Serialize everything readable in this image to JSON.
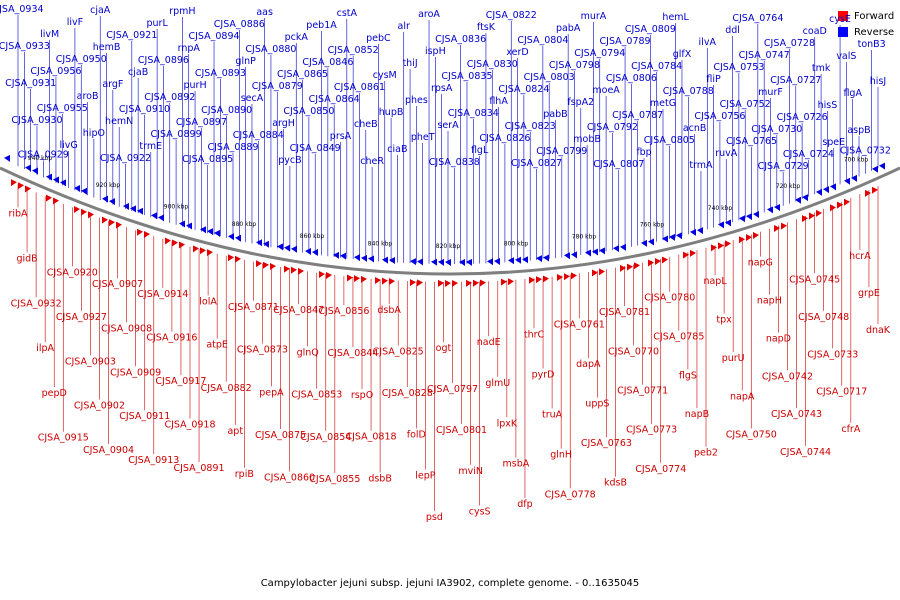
{
  "caption": "Campylobacter jejuni subsp. jejuni IA3902, complete genome. - 0..1635045",
  "legend": {
    "forward": {
      "label": "Forward",
      "color": "#ff0000"
    },
    "reverse": {
      "label": "Reverse",
      "color": "#0000ff"
    }
  },
  "colors": {
    "forward": "#e00000",
    "reverse": "#0000e0",
    "text_forward": "#cc0000",
    "text_reverse": "#0000cc",
    "backbone": "#7f7f7f"
  },
  "kbp_ticks": [
    "940 kbp",
    "920 kbp",
    "900 kbp",
    "880 kbp",
    "860 kbp",
    "840 kbp",
    "820 kbp",
    "800 kbp",
    "780 kbp",
    "760 kbp",
    "740 kbp",
    "720 kbp",
    "700 kbp"
  ],
  "reverse_labels": [
    "CJSA_0934",
    "CJSA_0933",
    "CJSA_0931",
    "CJSA_0930",
    "CJSA_0929",
    "livM",
    "CJSA_0956",
    "CJSA_0955",
    "livG",
    "livF",
    "CJSA_0950",
    "aroB",
    "hipO",
    "cjaA",
    "hemB",
    "argF",
    "hemN",
    "CJSA_0922",
    "CJSA_0921",
    "cjaB",
    "CJSA_0910",
    "trmE",
    "purL",
    "CJSA_0896",
    "CJSA_0892",
    "CJSA_0899",
    "rpmH",
    "rnpA",
    "purH",
    "CJSA_0897",
    "CJSA_0895",
    "CJSA_0894",
    "CJSA_0893",
    "CJSA_0890",
    "CJSA_0889",
    "CJSA_0886",
    "glnP",
    "secA",
    "CJSA_0884",
    "aas",
    "CJSA_0880",
    "CJSA_0879",
    "argH",
    "pycB",
    "pckA",
    "CJSA_0865",
    "CJSA_0850",
    "CJSA_0849",
    "peb1A",
    "CJSA_0846",
    "CJSA_0864",
    "prsA",
    "cstA",
    "CJSA_0852",
    "CJSA_0861",
    "cheB",
    "cheR",
    "pebC",
    "cysM",
    "hupB",
    "ciaB",
    "alr",
    "thiJ",
    "phes",
    "pheT",
    "aroA",
    "ispH",
    "rpsA",
    "serA",
    "CJSA_0838",
    "CJSA_0836",
    "CJSA_0835",
    "CJSA_0834",
    "flgL",
    "ftsK",
    "CJSA_0830",
    "flhA",
    "CJSA_0826",
    "CJSA_0822",
    "xerD",
    "CJSA_0824",
    "CJSA_0823",
    "CJSA_0827",
    "CJSA_0804",
    "CJSA_0803",
    "pabB",
    "CJSA_0799",
    "pabA",
    "CJSA_0798",
    "fspA2",
    "mobB",
    "murA",
    "CJSA_0794",
    "moeA",
    "CJSA_0792",
    "CJSA_0807",
    "CJSA_0789",
    "CJSA_0806",
    "CJSA_0787",
    "fbp",
    "CJSA_0809",
    "CJSA_0784",
    "metG",
    "CJSA_0805",
    "hemL",
    "glfX",
    "CJSA_0788",
    "acnB",
    "trmA",
    "ilvA",
    "fliP",
    "CJSA_0756",
    "ruvA",
    "ddl",
    "CJSA_0753",
    "CJSA_0752",
    "CJSA_0765",
    "CJSA_0764",
    "CJSA_0747",
    "murF",
    "CJSA_0730",
    "CJSA_0729",
    "CJSA_0728",
    "CJSA_0727",
    "CJSA_0726",
    "CJSA_0724",
    "coaD",
    "tmk",
    "hisS",
    "speE",
    "cysE",
    "valS",
    "flgA",
    "aspB",
    "CJSA_0732",
    "tonB3",
    "hisJ"
  ],
  "forward_labels": [
    "ribA",
    "gidB",
    "CJSA_0932",
    "ilpA",
    "pepD",
    "CJSA_0915",
    "CJSA_0920",
    "CJSA_0927",
    "CJSA_0903",
    "CJSA_0902",
    "CJSA_0904",
    "CJSA_0907",
    "CJSA_0908",
    "CJSA_0909",
    "CJSA_0911",
    "CJSA_0913",
    "CJSA_0914",
    "CJSA_0916",
    "CJSA_0917",
    "CJSA_0918",
    "CJSA_0891",
    "lolA",
    "atpE",
    "CJSA_0882",
    "apt",
    "rpiB",
    "CJSA_0871",
    "CJSA_0873",
    "pepA",
    "CJSA_0875",
    "CJSA_0860",
    "CJSA_0847",
    "glnQ",
    "CJSA_0853",
    "CJSA_0854",
    "CJSA_0855",
    "CJSA_0856",
    "CJSA_0844",
    "rspO",
    "CJSA_0818",
    "dsbB",
    "dsbA",
    "CJSA_0825",
    "CJSA_0828",
    "folD",
    "lepP",
    "psd",
    "ogt",
    "CJSA_0797",
    "CJSA_0801",
    "mviN",
    "cysS",
    "nadE",
    "glmU",
    "lpxK",
    "msbA",
    "dfp",
    "thrC",
    "pyrD",
    "truA",
    "glnH",
    "CJSA_0778",
    "CJSA_0761",
    "dapA",
    "uppS",
    "CJSA_0763",
    "kdsB",
    "CJSA_0781",
    "CJSA_0770",
    "CJSA_0771",
    "CJSA_0773",
    "CJSA_0774",
    "CJSA_0780",
    "CJSA_0785",
    "flgS",
    "napB",
    "peb2",
    "napL",
    "tpx",
    "purU",
    "napA",
    "CJSA_0750",
    "napG",
    "napH",
    "napD",
    "CJSA_0742",
    "CJSA_0743",
    "CJSA_0744",
    "CJSA_0745",
    "CJSA_0748",
    "CJSA_0733",
    "CJSA_0717",
    "cfrA",
    "hcrA",
    "grpE",
    "dnaK"
  ]
}
